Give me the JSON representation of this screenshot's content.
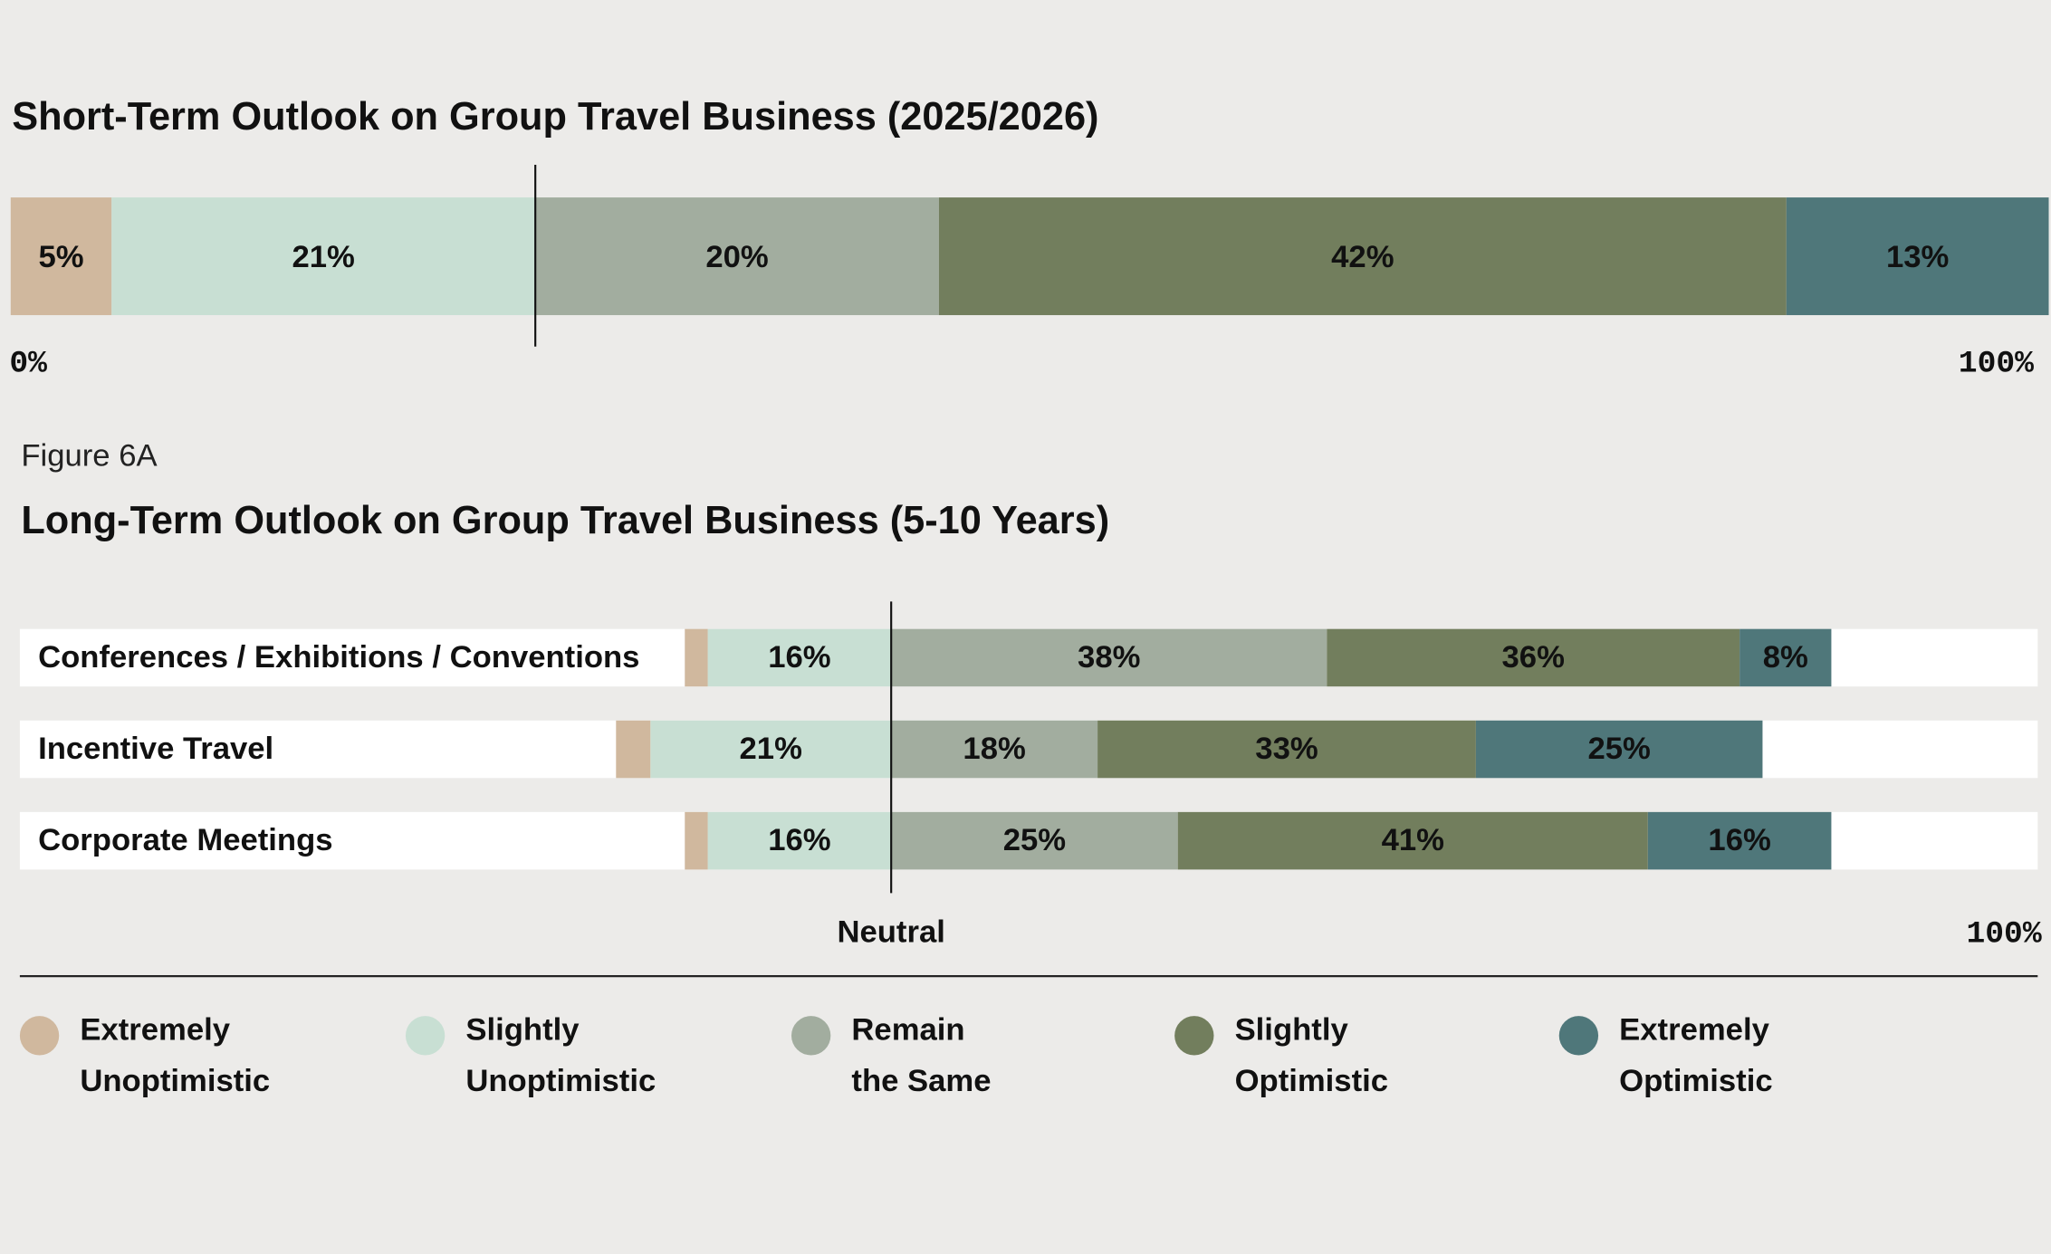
{
  "chart_data": [
    {
      "type": "stacked_bar",
      "title": "Short-Term Outlook on Group Travel Business (2025/2026)",
      "series": [
        {
          "color": "#d0b89e",
          "values": [
            5
          ],
          "value_labels": [
            "5%"
          ]
        },
        {
          "color": "#c8dfd3",
          "values": [
            21
          ],
          "value_labels": [
            "21%"
          ]
        },
        {
          "color": "#a2ad9f",
          "values": [
            20
          ],
          "value_labels": [
            "20%"
          ]
        },
        {
          "color": "#727e5d",
          "values": [
            42
          ],
          "value_labels": [
            "42%"
          ]
        },
        {
          "color": "#4f777a",
          "values": [
            13
          ],
          "value_labels": [
            "13%"
          ]
        }
      ],
      "xlim": [
        0,
        100
      ],
      "xticks": [
        {
          "value": 0,
          "label": "0%"
        },
        {
          "value": 100,
          "label": "100%"
        }
      ]
    },
    {
      "type": "diverging_bar",
      "caption": "Figure 6A",
      "title": "Long-Term Outlook on Group Travel Business (5-10 Years)",
      "categories": [
        "Conferences / Exhibitions / Conventions",
        "Incentive Travel",
        "Corporate Meetings"
      ],
      "negative_count": 2,
      "series": [
        {
          "name": "Extremely Unoptimistic",
          "color": "#d0b89e",
          "values": [
            2,
            3,
            2
          ]
        },
        {
          "name": "Slightly Unoptimistic",
          "color": "#c8dfd3",
          "values": [
            16,
            21,
            16
          ],
          "value_labels": [
            "16%",
            "21%",
            "16%"
          ]
        },
        {
          "name": "Remain the Same",
          "color": "#a2ad9f",
          "values": [
            38,
            18,
            25
          ],
          "value_labels": [
            "38%",
            "18%",
            "25%"
          ]
        },
        {
          "name": "Slightly Optimistic",
          "color": "#727e5d",
          "values": [
            36,
            33,
            41
          ],
          "value_labels": [
            "36%",
            "33%",
            "41%"
          ]
        },
        {
          "name": "Extremely Optimistic",
          "color": "#4f777a",
          "values": [
            8,
            25,
            16
          ],
          "value_labels": [
            "8%",
            "25%",
            "16%"
          ]
        }
      ],
      "xlim": [
        -76,
        100
      ],
      "xticks": [
        {
          "value": 0,
          "label": "Neutral"
        },
        {
          "value": 100,
          "label": "100%"
        }
      ]
    }
  ]
}
